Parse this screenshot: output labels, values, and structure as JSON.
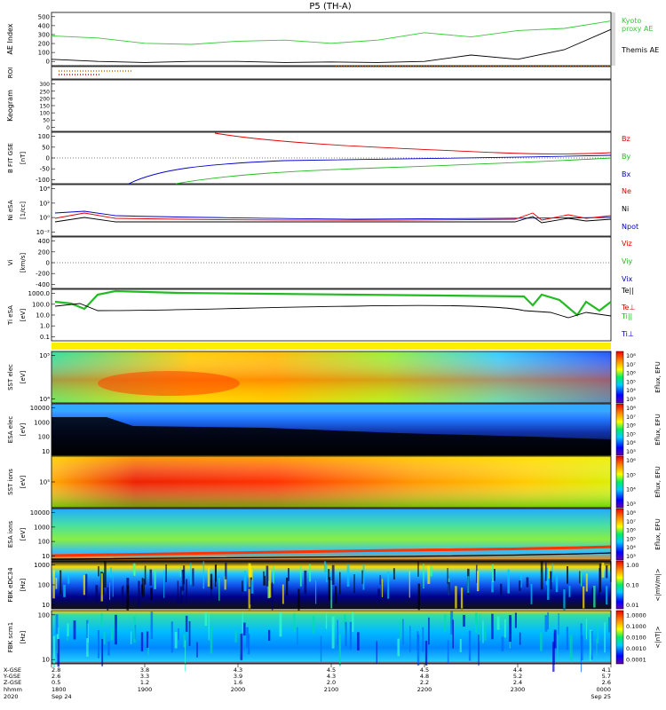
{
  "title": "P5 (TH-A)",
  "colors": {
    "kyoto": "#33cc33",
    "themis": "#000000",
    "red": "#dd0000",
    "green": "#22bb22",
    "blue": "#0000cc",
    "roi": "#cc6600"
  },
  "chart_data": [
    {
      "type": "line",
      "name": "ae-panel",
      "ylabel": "AE Index",
      "yticks": [
        "500",
        "400",
        "300",
        "200",
        "100",
        "0"
      ],
      "ylim": [
        0,
        500
      ],
      "series": [
        {
          "name": "Kyoto\nproxy AE",
          "x": [
            0,
            0.5,
            1,
            1.5,
            2,
            2.5,
            3,
            3.5,
            4,
            4.5,
            5,
            5.5,
            6
          ],
          "values": [
            280,
            260,
            210,
            200,
            230,
            240,
            210,
            240,
            310,
            270,
            330,
            350,
            420
          ]
        },
        {
          "name": "Themis AE",
          "x": [
            0,
            0.5,
            1,
            1.5,
            2,
            2.5,
            3,
            3.5,
            4,
            4.5,
            5,
            5.5,
            6
          ],
          "values": [
            60,
            40,
            30,
            40,
            40,
            30,
            35,
            30,
            40,
            100,
            60,
            150,
            340
          ]
        }
      ]
    },
    {
      "type": "line",
      "name": "roi-panel",
      "ylabel": "ROI"
    },
    {
      "type": "line",
      "name": "keogram-panel",
      "ylabel": "Keogram",
      "yticks": [
        "300",
        "250",
        "200",
        "150",
        "100",
        "50",
        "0"
      ]
    },
    {
      "type": "line",
      "name": "bfield-panel",
      "ylabel": "B FIT",
      "ylabel2": "GSE",
      "ylabel3": "[nT]",
      "yticks": [
        "100",
        "50",
        "0",
        "-50",
        "-100"
      ],
      "ylim": [
        -100,
        100
      ],
      "series": [
        {
          "name": "Bz",
          "values": []
        },
        {
          "name": "By",
          "values": []
        },
        {
          "name": "Bx",
          "values": []
        }
      ]
    },
    {
      "type": "line",
      "name": "density-panel",
      "ylabel": "Ni",
      "ylabel2": "eSA",
      "ylabel3": "[1/cc]",
      "yticks": [
        "10⁴",
        "10²",
        "10⁰",
        "10⁻²"
      ],
      "series": [
        {
          "name": "Ne",
          "values": []
        },
        {
          "name": "Ni",
          "values": []
        },
        {
          "name": "Npot",
          "values": []
        }
      ]
    },
    {
      "type": "line",
      "name": "velocity-panel",
      "ylabel": "Vi",
      "ylabel3": "[km/s]",
      "yticks": [
        "400",
        "200",
        "0",
        "-200",
        "-400"
      ],
      "series": [
        {
          "name": "Viz",
          "values": []
        },
        {
          "name": "Viy",
          "values": []
        },
        {
          "name": "Vix",
          "values": []
        }
      ]
    },
    {
      "type": "line",
      "name": "temperature-panel",
      "ylabel": "Ti",
      "ylabel2": "eSA",
      "ylabel3": "[eV]",
      "yticks": [
        "1000.0",
        "100.0",
        "10.0",
        "1.0",
        "0.1"
      ],
      "series": [
        {
          "name": "Te||",
          "values": []
        },
        {
          "name": "Te⊥",
          "values": []
        },
        {
          "name": "Ti||",
          "values": []
        },
        {
          "name": "Ti⊥",
          "values": []
        }
      ]
    },
    {
      "type": "heatmap",
      "name": "sst-electron-panel",
      "ylabel": "SST",
      "ylabel2": "elec",
      "ylabel3": "[eV]",
      "yticks": [
        "10⁵",
        "10⁴"
      ],
      "cbar_label": "Eflux, EFU",
      "cbar_ticks": [
        "10⁸",
        "10⁷",
        "10⁶",
        "10⁵",
        "10⁴",
        "10³"
      ]
    },
    {
      "type": "heatmap",
      "name": "esa-electron-panel",
      "ylabel": "ESA",
      "ylabel2": "elec",
      "ylabel3": "[eV]",
      "yticks": [
        "10000",
        "1000",
        "100",
        "10"
      ],
      "cbar_label": "Eflux, EFU",
      "cbar_ticks": [
        "10⁸",
        "10⁷",
        "10⁶",
        "10⁵",
        "10⁴",
        "10³"
      ]
    },
    {
      "type": "heatmap",
      "name": "sst-ion-panel",
      "ylabel": "SST",
      "ylabel2": "ions",
      "ylabel3": "[eV]",
      "yticks": [
        "10⁵"
      ],
      "cbar_label": "Eflux, EFU",
      "cbar_ticks": [
        "10⁶",
        "10⁵",
        "10⁴",
        "10³"
      ]
    },
    {
      "type": "heatmap",
      "name": "esa-ion-panel",
      "ylabel": "ESA",
      "ylabel2": "ions",
      "ylabel3": "[eV]",
      "yticks": [
        "10000",
        "1000",
        "100",
        "10"
      ],
      "cbar_label": "Eflux, EFU",
      "cbar_ticks": [
        "10⁸",
        "10⁷",
        "10⁶",
        "10⁵",
        "10⁴",
        "10³"
      ]
    },
    {
      "type": "heatmap",
      "name": "fbk-edc-panel",
      "ylabel": "FBK",
      "ylabel2": "eDC34",
      "ylabel3": "[Hz]",
      "yticks": [
        "1000",
        "100",
        "10"
      ],
      "cbar_label": "<|mV/m|>",
      "cbar_ticks": [
        "1.00",
        "0.10",
        "0.01"
      ]
    },
    {
      "type": "heatmap",
      "name": "fbk-scm-panel",
      "ylabel": "FBK",
      "ylabel2": "scm1",
      "ylabel3": "[Hz]",
      "yticks": [
        "100",
        "10"
      ],
      "cbar_label": "<|nT|>",
      "cbar_ticks": [
        "1.0000",
        "0.1000",
        "0.0100",
        "0.0010",
        "0.0001"
      ]
    }
  ],
  "xaxis": {
    "row_labels": [
      "X-GSE",
      "Y-GSE",
      "Z-GSE",
      "hhmm",
      "2020"
    ],
    "columns": [
      [
        "2.8",
        "2.6",
        "0.5",
        "1800",
        "Sep 24"
      ],
      [
        "3.8",
        "3.3",
        "1.2",
        "1900",
        ""
      ],
      [
        "4.3",
        "3.9",
        "1.6",
        "2000",
        ""
      ],
      [
        "4.5",
        "4.3",
        "2.0",
        "2100",
        ""
      ],
      [
        "4.5",
        "4.8",
        "2.2",
        "2200",
        ""
      ],
      [
        "4.4",
        "5.2",
        "2.4",
        "2300",
        ""
      ],
      [
        "4.1",
        "5.7",
        "2.6",
        "0000",
        "Sep 25"
      ]
    ]
  }
}
